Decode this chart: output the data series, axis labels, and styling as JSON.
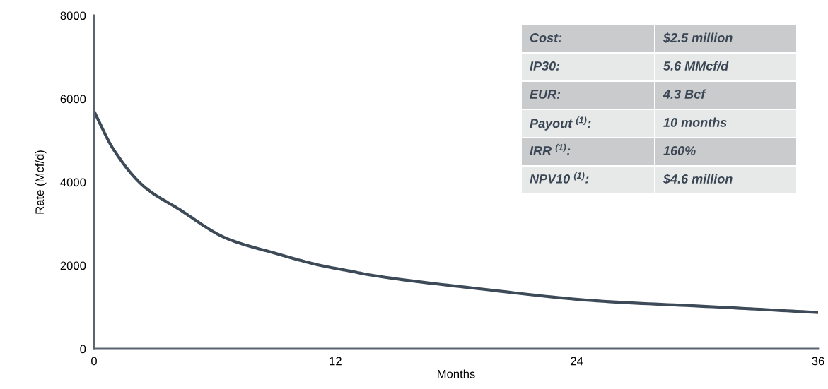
{
  "chart_data": {
    "type": "line",
    "xlabel": "Months",
    "ylabel": "Rate (Mcf/d)",
    "x": [
      0,
      0.95,
      2.47,
      4.23,
      6.59,
      8.95,
      11.27,
      12.9,
      13.63,
      18.99,
      25.0,
      31.07,
      36
    ],
    "series": [
      {
        "color": "#3d4a57",
        "values": [
          5700,
          4800,
          3900,
          3350,
          2650,
          2300,
          2000,
          1850,
          1780,
          1450,
          1150,
          1000,
          870
        ]
      }
    ],
    "xlim": [
      0,
      36
    ],
    "xticks": [
      0,
      12,
      24,
      36
    ],
    "ylim": [
      0,
      8000
    ],
    "yticks": [
      0,
      2000,
      4000,
      6000,
      8000
    ],
    "grid": false,
    "legend": false,
    "marker": "none",
    "line_style": "solid",
    "annotations": [
      "Cost:",
      "$2.5 million",
      "IP30:",
      "5.6 MMcf/d",
      "EUR:",
      "4.3 Bcf",
      "Payout $^{(1)}$:",
      "10 months",
      "IRR $^{(1)}$:",
      "160%",
      "NPV10 $^{(1)}$:",
      "$4.6 million"
    ]
  }
}
